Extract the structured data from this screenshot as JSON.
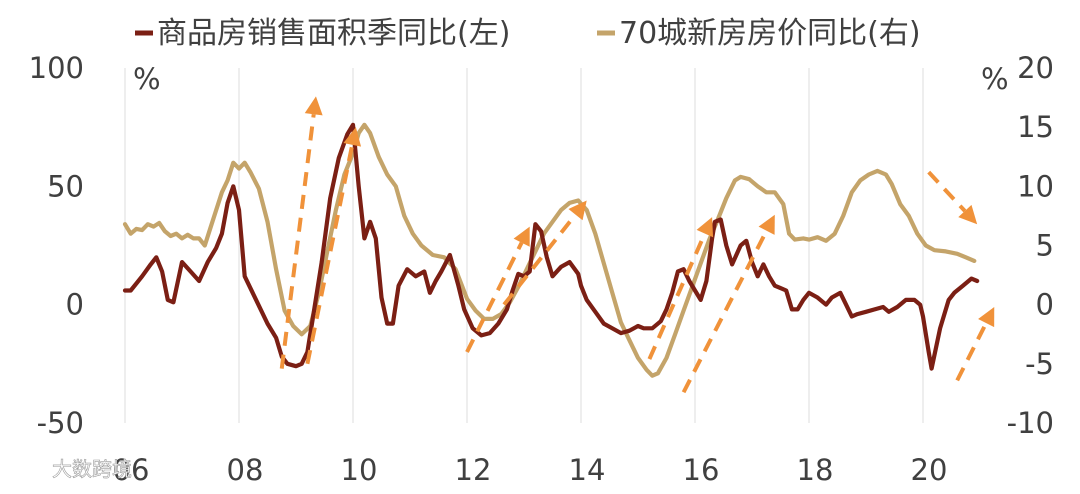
{
  "chart_data": {
    "type": "line",
    "legend": [
      {
        "label": "商品房销售面积季同比(左)",
        "color": "#7B1F14"
      },
      {
        "label": "70城新房房价同比(右)",
        "color": "#C4A46A"
      }
    ],
    "left_axis": {
      "unit": "%",
      "ylim": [
        -50,
        100
      ],
      "ticks": [
        "100",
        "50",
        "0",
        "-50"
      ],
      "tick_values": [
        100,
        50,
        0,
        -50
      ]
    },
    "right_axis": {
      "unit": "%",
      "ylim": [
        -10,
        20
      ],
      "ticks": [
        "20",
        "15",
        "10",
        "5",
        "0",
        "-5",
        "-10"
      ],
      "tick_values": [
        20,
        15,
        10,
        5,
        0,
        -5,
        -10
      ]
    },
    "x_axis": {
      "xlim": [
        2006.0,
        2021.0
      ],
      "ticks": [
        "06",
        "08",
        "10",
        "12",
        "14",
        "16",
        "18",
        "20"
      ],
      "tick_values": [
        2006,
        2008,
        2010,
        2012,
        2014,
        2016,
        2018,
        2020
      ]
    },
    "grid": "vertical",
    "series": [
      {
        "name": "商品房销售面积季同比(左)",
        "axis": "left",
        "color": "#7B1F14",
        "points": [
          [
            2006.0,
            6
          ],
          [
            2006.1,
            6
          ],
          [
            2006.2,
            9
          ],
          [
            2006.3,
            12
          ],
          [
            2006.45,
            17
          ],
          [
            2006.55,
            20
          ],
          [
            2006.65,
            14
          ],
          [
            2006.75,
            2
          ],
          [
            2006.85,
            1
          ],
          [
            2007.0,
            18
          ],
          [
            2007.15,
            14
          ],
          [
            2007.3,
            10
          ],
          [
            2007.45,
            18
          ],
          [
            2007.6,
            24
          ],
          [
            2007.7,
            30
          ],
          [
            2007.8,
            43
          ],
          [
            2007.9,
            50
          ],
          [
            2008.0,
            40
          ],
          [
            2008.1,
            12
          ],
          [
            2008.3,
            2
          ],
          [
            2008.5,
            -8
          ],
          [
            2008.65,
            -14
          ],
          [
            2008.75,
            -22
          ],
          [
            2008.85,
            -25
          ],
          [
            2009.0,
            -26
          ],
          [
            2009.1,
            -25
          ],
          [
            2009.2,
            -20
          ],
          [
            2009.3,
            -5
          ],
          [
            2009.45,
            18
          ],
          [
            2009.6,
            45
          ],
          [
            2009.75,
            62
          ],
          [
            2009.9,
            72
          ],
          [
            2010.0,
            76
          ],
          [
            2010.1,
            50
          ],
          [
            2010.2,
            28
          ],
          [
            2010.3,
            35
          ],
          [
            2010.4,
            28
          ],
          [
            2010.5,
            3
          ],
          [
            2010.6,
            -8
          ],
          [
            2010.7,
            -8
          ],
          [
            2010.8,
            8
          ],
          [
            2010.95,
            15
          ],
          [
            2011.1,
            12
          ],
          [
            2011.25,
            14
          ],
          [
            2011.35,
            5
          ],
          [
            2011.45,
            10
          ],
          [
            2011.55,
            14
          ],
          [
            2011.7,
            21
          ],
          [
            2011.85,
            8
          ],
          [
            2011.95,
            -2
          ],
          [
            2012.1,
            -10
          ],
          [
            2012.25,
            -13
          ],
          [
            2012.4,
            -12
          ],
          [
            2012.55,
            -8
          ],
          [
            2012.7,
            -2
          ],
          [
            2012.8,
            6
          ],
          [
            2012.9,
            13
          ],
          [
            2013.0,
            12
          ],
          [
            2013.1,
            14
          ],
          [
            2013.2,
            34
          ],
          [
            2013.3,
            31
          ],
          [
            2013.4,
            20
          ],
          [
            2013.5,
            12
          ],
          [
            2013.65,
            16
          ],
          [
            2013.8,
            18
          ],
          [
            2013.95,
            13
          ],
          [
            2014.0,
            8
          ],
          [
            2014.1,
            2
          ],
          [
            2014.25,
            -3
          ],
          [
            2014.4,
            -8
          ],
          [
            2014.55,
            -10
          ],
          [
            2014.7,
            -12
          ],
          [
            2014.85,
            -11
          ],
          [
            2015.0,
            -9
          ],
          [
            2015.1,
            -10
          ],
          [
            2015.25,
            -10
          ],
          [
            2015.4,
            -7
          ],
          [
            2015.5,
            -2
          ],
          [
            2015.6,
            5
          ],
          [
            2015.7,
            14
          ],
          [
            2015.8,
            15
          ],
          [
            2015.9,
            10
          ],
          [
            2016.0,
            6
          ],
          [
            2016.1,
            2
          ],
          [
            2016.2,
            10
          ],
          [
            2016.3,
            28
          ],
          [
            2016.35,
            35
          ],
          [
            2016.45,
            36
          ],
          [
            2016.55,
            25
          ],
          [
            2016.65,
            17
          ],
          [
            2016.8,
            25
          ],
          [
            2016.9,
            27
          ],
          [
            2017.0,
            18
          ],
          [
            2017.1,
            12
          ],
          [
            2017.2,
            17
          ],
          [
            2017.3,
            12
          ],
          [
            2017.4,
            8
          ],
          [
            2017.5,
            7
          ],
          [
            2017.6,
            6
          ],
          [
            2017.7,
            -2
          ],
          [
            2017.8,
            -2
          ],
          [
            2017.9,
            2
          ],
          [
            2018.0,
            5
          ],
          [
            2018.15,
            3
          ],
          [
            2018.3,
            0
          ],
          [
            2018.4,
            3
          ],
          [
            2018.55,
            5
          ],
          [
            2018.65,
            0
          ],
          [
            2018.75,
            -5
          ],
          [
            2018.85,
            -4
          ],
          [
            2019.0,
            -3
          ],
          [
            2019.15,
            -2
          ],
          [
            2019.3,
            -1
          ],
          [
            2019.4,
            -3
          ],
          [
            2019.55,
            -1
          ],
          [
            2019.7,
            2
          ],
          [
            2019.85,
            2
          ],
          [
            2019.95,
            0
          ],
          [
            2020.0,
            -5
          ],
          [
            2020.1,
            -20
          ],
          [
            2020.15,
            -27
          ],
          [
            2020.3,
            -10
          ],
          [
            2020.45,
            2
          ],
          [
            2020.55,
            5
          ],
          [
            2020.7,
            8
          ],
          [
            2020.85,
            11
          ],
          [
            2020.95,
            10
          ]
        ]
      },
      {
        "name": "70城新房房价同比(右)",
        "axis": "right",
        "color": "#C4A46A",
        "points": [
          [
            2006.0,
            6.8
          ],
          [
            2006.1,
            6.0
          ],
          [
            2006.2,
            6.4
          ],
          [
            2006.3,
            6.3
          ],
          [
            2006.4,
            6.8
          ],
          [
            2006.5,
            6.6
          ],
          [
            2006.6,
            6.9
          ],
          [
            2006.7,
            6.2
          ],
          [
            2006.8,
            5.8
          ],
          [
            2006.9,
            6.0
          ],
          [
            2007.0,
            5.6
          ],
          [
            2007.1,
            5.9
          ],
          [
            2007.2,
            5.6
          ],
          [
            2007.3,
            5.6
          ],
          [
            2007.4,
            5.0
          ],
          [
            2007.5,
            6.5
          ],
          [
            2007.6,
            8.0
          ],
          [
            2007.7,
            9.5
          ],
          [
            2007.8,
            10.5
          ],
          [
            2007.9,
            12.0
          ],
          [
            2008.0,
            11.5
          ],
          [
            2008.1,
            12.0
          ],
          [
            2008.2,
            11.2
          ],
          [
            2008.35,
            9.8
          ],
          [
            2008.5,
            7.0
          ],
          [
            2008.65,
            3.0
          ],
          [
            2008.8,
            -0.5
          ],
          [
            2008.95,
            -1.8
          ],
          [
            2009.1,
            -2.5
          ],
          [
            2009.25,
            -1.8
          ],
          [
            2009.4,
            1.0
          ],
          [
            2009.55,
            4.5
          ],
          [
            2009.7,
            8.0
          ],
          [
            2009.85,
            11.0
          ],
          [
            2010.0,
            12.8
          ],
          [
            2010.1,
            14.5
          ],
          [
            2010.2,
            15.2
          ],
          [
            2010.3,
            14.5
          ],
          [
            2010.45,
            12.5
          ],
          [
            2010.6,
            11.0
          ],
          [
            2010.75,
            10.0
          ],
          [
            2010.9,
            7.5
          ],
          [
            2011.05,
            6.0
          ],
          [
            2011.2,
            5.0
          ],
          [
            2011.4,
            4.2
          ],
          [
            2011.6,
            4.0
          ],
          [
            2011.8,
            3.0
          ],
          [
            2012.0,
            0.5
          ],
          [
            2012.15,
            -0.5
          ],
          [
            2012.3,
            -1.2
          ],
          [
            2012.45,
            -1.2
          ],
          [
            2012.6,
            -0.8
          ],
          [
            2012.75,
            0.2
          ],
          [
            2012.9,
            1.5
          ],
          [
            2013.05,
            3.0
          ],
          [
            2013.2,
            4.5
          ],
          [
            2013.35,
            6.0
          ],
          [
            2013.5,
            7.0
          ],
          [
            2013.65,
            8.0
          ],
          [
            2013.8,
            8.6
          ],
          [
            2013.95,
            8.8
          ],
          [
            2014.1,
            8.0
          ],
          [
            2014.25,
            6.0
          ],
          [
            2014.4,
            3.5
          ],
          [
            2014.55,
            1.0
          ],
          [
            2014.7,
            -1.5
          ],
          [
            2014.85,
            -3.0
          ],
          [
            2015.0,
            -4.5
          ],
          [
            2015.15,
            -5.5
          ],
          [
            2015.25,
            -6.0
          ],
          [
            2015.35,
            -5.8
          ],
          [
            2015.5,
            -4.5
          ],
          [
            2015.65,
            -2.5
          ],
          [
            2015.8,
            -0.5
          ],
          [
            2015.95,
            1.5
          ],
          [
            2016.1,
            3.5
          ],
          [
            2016.25,
            5.5
          ],
          [
            2016.4,
            7.2
          ],
          [
            2016.55,
            9.0
          ],
          [
            2016.7,
            10.5
          ],
          [
            2016.8,
            10.8
          ],
          [
            2016.95,
            10.6
          ],
          [
            2017.1,
            10.0
          ],
          [
            2017.25,
            9.5
          ],
          [
            2017.4,
            9.5
          ],
          [
            2017.55,
            8.5
          ],
          [
            2017.65,
            6.0
          ],
          [
            2017.75,
            5.5
          ],
          [
            2017.9,
            5.6
          ],
          [
            2018.0,
            5.5
          ],
          [
            2018.15,
            5.7
          ],
          [
            2018.3,
            5.4
          ],
          [
            2018.45,
            6.0
          ],
          [
            2018.6,
            7.5
          ],
          [
            2018.75,
            9.5
          ],
          [
            2018.9,
            10.5
          ],
          [
            2019.05,
            11.0
          ],
          [
            2019.2,
            11.3
          ],
          [
            2019.35,
            11.0
          ],
          [
            2019.45,
            10.2
          ],
          [
            2019.6,
            8.5
          ],
          [
            2019.75,
            7.5
          ],
          [
            2019.9,
            6.0
          ],
          [
            2020.05,
            5.0
          ],
          [
            2020.2,
            4.6
          ],
          [
            2020.4,
            4.5
          ],
          [
            2020.6,
            4.3
          ],
          [
            2020.75,
            4.0
          ],
          [
            2020.9,
            3.7
          ]
        ]
      }
    ],
    "annotations": {
      "type": "dashed-arrow",
      "color": "#F0923A",
      "arrows": [
        {
          "from": [
            2008.75,
            -27
          ],
          "to": [
            2009.35,
            88
          ]
        },
        {
          "from": [
            2009.2,
            -25
          ],
          "to": [
            2010.05,
            75
          ]
        },
        {
          "from": [
            2012.0,
            -20
          ],
          "to": [
            2013.1,
            33
          ]
        },
        {
          "from": [
            2012.65,
            0
          ],
          "to": [
            2014.1,
            44
          ]
        },
        {
          "from": [
            2015.2,
            -23
          ],
          "to": [
            2016.3,
            37
          ]
        },
        {
          "from": [
            2015.8,
            -37
          ],
          "to": [
            2017.4,
            38
          ]
        },
        {
          "from": [
            2020.1,
            56
          ],
          "to": [
            2020.95,
            34
          ]
        },
        {
          "from": [
            2020.6,
            -32
          ],
          "to": [
            2021.25,
            -1
          ]
        }
      ]
    },
    "watermark": "大数跨境"
  }
}
